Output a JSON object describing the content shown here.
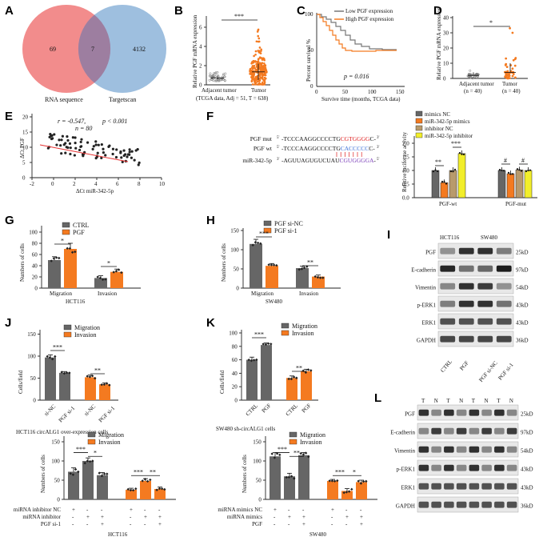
{
  "panels": {
    "A": {
      "label": "A",
      "left_count": "69",
      "overlap_count": "7",
      "right_count": "4132",
      "left_name": "RNA sequence",
      "right_name": "Targetscan",
      "left_color": "#f17f7f",
      "right_color": "#8db4d9"
    },
    "B": {
      "label": "B",
      "ylabel": "Relative PGF mRNA expression",
      "categories": [
        "Adjacent tumor",
        "Tumor"
      ],
      "note": "(TCGA data, Adj = 51, T = 638)",
      "sig": "***",
      "yticks": [
        "0",
        "2",
        "4",
        "6"
      ]
    },
    "C": {
      "label": "C",
      "ylabel": "Percent survival %",
      "xlabel": "Survive time (months, TCGA data)",
      "legend": [
        "Low PGF expression",
        "High PGF expression"
      ],
      "pvalue": "p = 0.016",
      "xticks": [
        "0",
        "50",
        "100",
        "150"
      ],
      "yticks": [
        "0",
        "50",
        "100"
      ]
    },
    "D": {
      "label": "D",
      "ylabel": "Relative PGF mRNA expression",
      "categories": [
        "Adjacent tumor",
        "Tumor"
      ],
      "ns": [
        "(n = 40)",
        "(n = 40)"
      ],
      "sig": "*",
      "yticks": [
        "0",
        "10",
        "20",
        "30",
        "40"
      ]
    },
    "E": {
      "label": "E",
      "stat_r": "r = -0.547,",
      "stat_p": "p < 0.001",
      "stat_n": "n = 80",
      "ylabel": "ΔCt  PGF",
      "xlabel": "ΔCt  miR-342-5p",
      "xticks": [
        "-2",
        "0",
        "2",
        "4",
        "6",
        "8",
        "10"
      ],
      "yticks": [
        "0",
        "5",
        "10",
        "15",
        "20"
      ]
    },
    "F": {
      "label": "F",
      "seq": [
        {
          "name": "PGF mut",
          "p5": "5'",
          "a": "-TCCCAAGGCCCCTG",
          "b": "CGTGGGG",
          "c": "C-",
          "p3": "3'"
        },
        {
          "name": "PGF wt",
          "p5": "5'",
          "a": "-TCCCAAGGCCCCTG",
          "b": "CACCCCC",
          "c": "C-",
          "p3": "3'"
        },
        {
          "name": "miR-342-5p",
          "p5": "3'",
          "a": "-AGUUAGUGUCUAU",
          "b": "CGUGGGGA",
          "c": "-",
          "p3": "5'"
        }
      ],
      "legend": [
        "mimics NC",
        "miR-342-5p mimics",
        "inhibitor NC",
        "miR-342-5p inhibitor"
      ],
      "ylabel": "Relative luciferase activity",
      "groups": [
        "PGF-wt",
        "PGF-mut"
      ],
      "sigs": [
        "**",
        "***",
        "#",
        "#"
      ],
      "yticks": [
        "0.0",
        "0.5",
        "1.0",
        "1.5",
        "2.0"
      ]
    },
    "G": {
      "label": "G",
      "legend": [
        "CTRL",
        "PGF"
      ],
      "ylabel": "Numbers of cells",
      "groups": [
        "Migration",
        "Invasion"
      ],
      "cell": "HCT116",
      "sigs": [
        "*",
        "*"
      ],
      "yticks": [
        "0",
        "20",
        "40",
        "60",
        "80",
        "100"
      ]
    },
    "H": {
      "label": "H",
      "legend": [
        "PGF si-NC",
        "PGF si-1"
      ],
      "ylabel": "Numbers of cells",
      "groups": [
        "Migration",
        "Invasion"
      ],
      "cell": "SW480",
      "sigs": [
        "***",
        "**"
      ],
      "yticks": [
        "0",
        "50",
        "100",
        "150"
      ]
    },
    "I": {
      "label": "I",
      "cells": [
        "HCT116",
        "SW480"
      ],
      "proteins": [
        "PGF",
        "E-cadherin",
        "Vimentin",
        "p-ERK1",
        "ERK1",
        "GAPDH"
      ],
      "sizes": [
        "25kD",
        "97kD",
        "54kD",
        "43kD",
        "43kD",
        "36kD"
      ],
      "lanes": [
        "CTRL",
        "PGF",
        "PGF si-NC",
        "PGF si-1"
      ]
    },
    "J": {
      "label": "J",
      "legend": [
        "Migration",
        "Invasion"
      ],
      "ylabel": "Cells/field",
      "xlabels": [
        "si-NC",
        "PGF si-1",
        "si-NC",
        "PGF si-1"
      ],
      "sigs": [
        "***",
        "**"
      ],
      "caption": "HCT116 circALG1 over-expression cells",
      "yticks": [
        "0",
        "50",
        "100",
        "150"
      ]
    },
    "K": {
      "label": "K",
      "legend": [
        "Migration",
        "Invasion"
      ],
      "ylabel": "Cells/field",
      "xlabels": [
        "CTRL",
        "PGF",
        "CTRL",
        "PGF"
      ],
      "sigs": [
        "***",
        "**"
      ],
      "caption": "SW480 sh-circALG1 cells",
      "yticks": [
        "0",
        "20",
        "40",
        "60",
        "80",
        "100"
      ]
    },
    "L": {
      "label": "L",
      "lanes": [
        "T",
        "N",
        "T",
        "N",
        "T",
        "N",
        "T",
        "N"
      ],
      "proteins": [
        "PGF",
        "E-cadherin",
        "Vimentin",
        "p-ERK1",
        "ERK1",
        "GAPDH"
      ],
      "sizes": [
        "25kD",
        "97kD",
        "54kD",
        "43kD",
        "43kD",
        "36kD"
      ]
    },
    "M": {
      "legend": [
        "Migration",
        "Invasion"
      ],
      "ylabel": "Numbers of cells",
      "rows": [
        "miRNA inhibitor NC",
        "miRNA inhibitor",
        "PGF si-1"
      ],
      "marks": [
        [
          "+",
          "-",
          "-",
          "+",
          "-",
          "-"
        ],
        [
          "-",
          "+",
          "+",
          "-",
          "+",
          "+"
        ],
        [
          "-",
          "-",
          "+",
          "-",
          "-",
          "+"
        ]
      ],
      "cell": "HCT116",
      "sigs": [
        "***",
        "*",
        "***",
        "**"
      ],
      "yticks": [
        "0",
        "50",
        "100",
        "150"
      ]
    },
    "N": {
      "legend": [
        "Migration",
        "Invasion"
      ],
      "ylabel": "Numbers of cells",
      "rows": [
        "miRNA mimics NC",
        "miRNA mimics",
        "PGF"
      ],
      "marks": [
        [
          "+",
          "-",
          "-",
          "+",
          "-",
          "-"
        ],
        [
          "-",
          "+",
          "+",
          "-",
          "+",
          "+"
        ],
        [
          "-",
          "-",
          "+",
          "-",
          "-",
          "+"
        ]
      ],
      "cell": "SW480",
      "sigs": [
        "***",
        "**",
        "***",
        "*"
      ],
      "yticks": [
        "0",
        "50",
        "100",
        "150"
      ]
    }
  },
  "chart_data": [
    {
      "panel": "F",
      "type": "bar",
      "categories": [
        "PGF-wt",
        "PGF-mut"
      ],
      "series": [
        {
          "name": "mimics NC",
          "values": [
            1.0,
            1.0
          ]
        },
        {
          "name": "miR-342-5p mimics",
          "values": [
            0.55,
            0.88
          ]
        },
        {
          "name": "inhibitor NC",
          "values": [
            1.0,
            1.02
          ]
        },
        {
          "name": "miR-342-5p inhibitor",
          "values": [
            1.62,
            1.0
          ]
        }
      ],
      "ylim": [
        0,
        2.0
      ],
      "ylabel": "Relative luciferase activity"
    },
    {
      "panel": "G",
      "type": "bar",
      "categories": [
        "Migration",
        "Invasion"
      ],
      "series": [
        {
          "name": "CTRL",
          "values": [
            50,
            18
          ]
        },
        {
          "name": "PGF",
          "values": [
            70,
            29
          ]
        }
      ],
      "ylim": [
        0,
        100
      ]
    },
    {
      "panel": "H",
      "type": "bar",
      "categories": [
        "Migration",
        "Invasion"
      ],
      "series": [
        {
          "name": "PGF si-NC",
          "values": [
            115,
            52
          ]
        },
        {
          "name": "PGF si-1",
          "values": [
            58,
            30
          ]
        }
      ],
      "ylim": [
        0,
        150
      ]
    },
    {
      "panel": "J",
      "type": "bar",
      "categories": [
        "si-NC",
        "PGF si-1",
        "si-NC",
        "PGF si-1"
      ],
      "values": [
        97,
        62,
        52,
        36
      ],
      "ylim": [
        0,
        150
      ]
    },
    {
      "panel": "K",
      "type": "bar",
      "categories": [
        "CTRL",
        "PGF",
        "CTRL",
        "PGF"
      ],
      "values": [
        60,
        82,
        33,
        43
      ],
      "ylim": [
        0,
        100
      ]
    },
    {
      "panel": "M",
      "type": "bar",
      "categories": [
        "1",
        "2",
        "3",
        "4",
        "5",
        "6"
      ],
      "values": [
        72,
        100,
        63,
        25,
        48,
        27
      ],
      "ylim": [
        0,
        150
      ]
    },
    {
      "panel": "N",
      "type": "bar",
      "categories": [
        "1",
        "2",
        "3",
        "4",
        "5",
        "6"
      ],
      "values": [
        112,
        60,
        115,
        48,
        22,
        45
      ],
      "ylim": [
        0,
        150
      ]
    }
  ],
  "colors": {
    "gray": "#666666",
    "orange": "#f47a20",
    "tan": "#b89a6c",
    "yellow": "#f2ee2a"
  }
}
